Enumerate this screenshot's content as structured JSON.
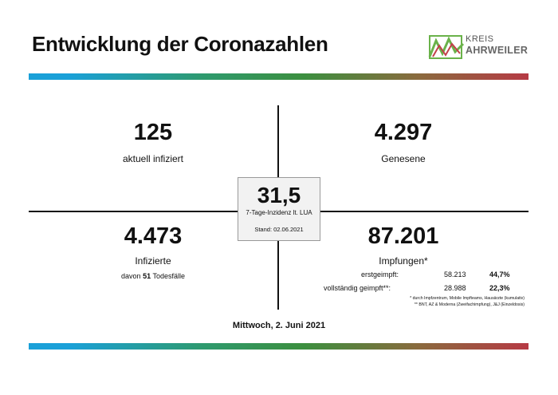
{
  "title": "Entwicklung der Coronazahlen",
  "logo": {
    "line1": "KREIS",
    "line2": "AHRWEILER"
  },
  "quadrants": {
    "top_left": {
      "value": "125",
      "label": "aktuell infiziert"
    },
    "top_right": {
      "value": "4.297",
      "label": "Genesene"
    },
    "bottom_left": {
      "value": "4.473",
      "label": "Infizierte",
      "sub_prefix": "davon",
      "sub_bold": "51",
      "sub_suffix": "Todesfälle"
    },
    "bottom_right": {
      "value": "87.201",
      "label": "Impfungen*",
      "rows": [
        {
          "label": "erstgeimpft:",
          "count": "58.213",
          "percent": "44,7%"
        },
        {
          "label": "vollständig geimpft**:",
          "count": "28.988",
          "percent": "22,3%"
        }
      ],
      "note1": "* durch Impfzentrum, Mobile Impfteams, Hausärzte (kumulativ)",
      "note2": "** BNT, AZ & Moderna (Zweifachimpfung), J&J (Einzeldosis)"
    }
  },
  "center": {
    "value": "31,5",
    "label": "7-Tage-Inzidenz lt. LUA",
    "stand": "Stand: 02.06.2021"
  },
  "date": "Mittwoch, 2. Juni 2021",
  "colors": {
    "bar_start": "#1aa0d8",
    "bar_mid": "#3c8f3f",
    "bar_end": "#b63a44",
    "logo_green": "#6ab24a",
    "logo_red": "#c2404a"
  }
}
